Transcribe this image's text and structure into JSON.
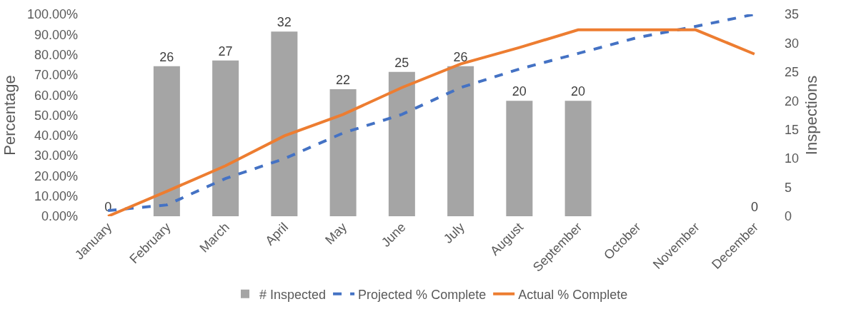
{
  "chart_data": {
    "type": "bar",
    "categories": [
      "January",
      "February",
      "March",
      "April",
      "May",
      "June",
      "July",
      "August",
      "September",
      "October",
      "November",
      "December"
    ],
    "ylabel": "Percentage",
    "y2label": "Inspections",
    "ylim": [
      0,
      100
    ],
    "yticks": [
      {
        "value": 0,
        "label": "0.00%"
      },
      {
        "value": 10,
        "label": "10.00%"
      },
      {
        "value": 20,
        "label": "20.00%"
      },
      {
        "value": 30,
        "label": "30.00%"
      },
      {
        "value": 40,
        "label": "40.00%"
      },
      {
        "value": 50,
        "label": "50.00%"
      },
      {
        "value": 60,
        "label": "60.00%"
      },
      {
        "value": 70,
        "label": "70.00%"
      },
      {
        "value": 80,
        "label": "80.00%"
      },
      {
        "value": 90,
        "label": "90.00%"
      },
      {
        "value": 100,
        "label": "100.00%"
      }
    ],
    "y2lim": [
      0,
      35
    ],
    "y2ticks": [
      0,
      5,
      10,
      15,
      20,
      25,
      30,
      35
    ],
    "series": [
      {
        "name": "# Inspected",
        "axis": "y2",
        "color": "#a5a5a5",
        "data_labels": true,
        "values": [
          0,
          26,
          27,
          32,
          22,
          25,
          26,
          20,
          20,
          null,
          null,
          0
        ]
      },
      {
        "name": "Projected % Complete",
        "type": "line",
        "color": "#4472c4",
        "line_style": "dashed",
        "values": [
          2.8,
          5.6,
          18.7,
          28.5,
          41.2,
          50.4,
          63.7,
          72.9,
          80.6,
          88.4,
          94,
          100
        ]
      },
      {
        "name": "Actual % Complete",
        "type": "line",
        "color": "#ed7d31",
        "line_style": "solid",
        "values": [
          0,
          12.3,
          25,
          39.8,
          50.4,
          63.7,
          75.4,
          83.5,
          92.3,
          92.3,
          92.3,
          80.3
        ]
      }
    ],
    "grid": false,
    "legend": "bottom",
    "marker": "none"
  }
}
